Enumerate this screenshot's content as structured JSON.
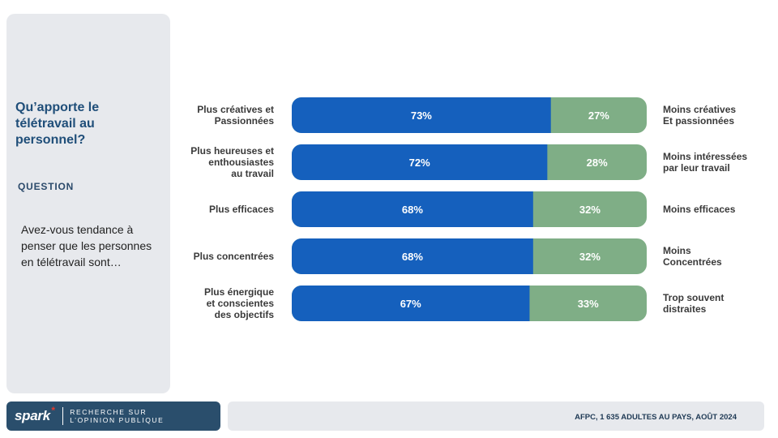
{
  "panel": {
    "title": "Qu’apporte le télétravail au personnel?",
    "section": "QUESTION",
    "question": "Avez-vous tendance à penser que les personnes en télétravail sont…"
  },
  "footer": {
    "brand": "spark",
    "brand_mark": "*",
    "brand_tagline_1": "RECHERCHE SUR",
    "brand_tagline_2": "L’OPINION PUBLIQUE",
    "source": "AFPC, 1 635 ADULTES AU PAYS, AOÛT 2024"
  },
  "colors": {
    "positive": "#1560bd",
    "negative": "#7fae86",
    "text_dark": "#3a3a3a",
    "panel_bg": "#e7e9ed"
  },
  "chart_data": {
    "type": "bar",
    "orientation": "horizontal",
    "stacked": true,
    "percent_stacked": true,
    "xlim": [
      0,
      100
    ],
    "grid": false,
    "categories": [
      "Plus créatives et\nPassionnées",
      "Plus heureuses et\nenthousiastes\nau travail",
      "Plus efficaces",
      "Plus concentrées",
      "Plus énergique\net conscientes\ndes objectifs"
    ],
    "opposite_labels": [
      "Moins créatives\nEt passionnées",
      "Moins intéressées\npar leur travail",
      "Moins efficaces",
      "Moins\nConcentrées",
      "Trop souvent\ndistraites"
    ],
    "series": [
      {
        "values": [
          73,
          72,
          68,
          68,
          67
        ],
        "labels": [
          "73%",
          "72%",
          "68%",
          "68%",
          "67%"
        ]
      },
      {
        "values": [
          27,
          28,
          32,
          32,
          33
        ],
        "labels": [
          "27%",
          "28%",
          "32%",
          "32%",
          "33%"
        ]
      }
    ]
  }
}
